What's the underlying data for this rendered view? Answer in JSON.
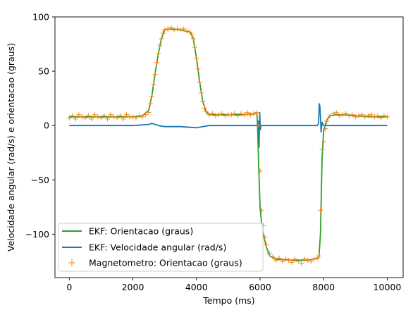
{
  "chart_data": {
    "type": "line",
    "xlabel": "Tempo (ms)",
    "ylabel": "Velocidade angular (rad/s) e orientacao (graus)",
    "xlim": [
      -450,
      10500
    ],
    "ylim": [
      -140,
      100
    ],
    "xticks": [
      0,
      2000,
      4000,
      6000,
      8000,
      10000
    ],
    "yticks": [
      100,
      50,
      0,
      -50,
      -100
    ],
    "xtick_labels": [
      "0",
      "2000",
      "4000",
      "6000",
      "8000",
      "10000"
    ],
    "ytick_labels": [
      "100",
      "50",
      "0",
      "−50",
      "−100"
    ],
    "grid": false,
    "legend_position": "lower-left",
    "series": [
      {
        "name": "EKF: Orientacao (graus)",
        "kind": "line",
        "color": "#2ca02c",
        "x": [
          0,
          500,
          1000,
          1500,
          2000,
          2300,
          2500,
          2600,
          2700,
          2800,
          2900,
          3000,
          3200,
          3500,
          3800,
          3900,
          4000,
          4100,
          4200,
          4300,
          4400,
          4600,
          5000,
          5500,
          5900,
          5920,
          5960,
          6000,
          6050,
          6100,
          6200,
          6300,
          6500,
          7000,
          7500,
          7850,
          7900,
          7950,
          8000,
          8100,
          8200,
          8400,
          8600,
          9000,
          9500,
          10000
        ],
        "y": [
          8,
          8,
          8,
          8,
          8,
          9,
          14,
          28,
          48,
          66,
          80,
          88,
          89,
          88,
          86,
          80,
          62,
          40,
          22,
          13,
          10,
          10,
          10,
          10,
          11,
          0,
          -40,
          -75,
          -90,
          -100,
          -112,
          -120,
          -123,
          -124,
          -124,
          -122,
          -100,
          -30,
          -5,
          5,
          9,
          10,
          10,
          9,
          8,
          8
        ]
      },
      {
        "name": "EKF: Velocidade angular (rad/s)",
        "kind": "line",
        "color": "#1f77b4",
        "x": [
          0,
          2000,
          2500,
          2600,
          2700,
          2800,
          3000,
          3500,
          4000,
          4200,
          4400,
          5000,
          5800,
          5900,
          5950,
          5970,
          5990,
          6010,
          6030,
          6080,
          6200,
          6500,
          7000,
          7500,
          7800,
          7840,
          7860,
          7880,
          7900,
          7920,
          7950,
          8000,
          8200,
          9000,
          10000
        ],
        "y": [
          0,
          0,
          1,
          2,
          1,
          0,
          -1,
          -1,
          -2,
          -1,
          0,
          0,
          0,
          0,
          4,
          -20,
          12,
          -4,
          0,
          0,
          0,
          0,
          0,
          0,
          0,
          2,
          20,
          18,
          8,
          -6,
          3,
          0,
          0,
          0,
          0
        ]
      },
      {
        "name": "Magnetometro: Orientacao (graus)",
        "kind": "scatter",
        "marker": "+",
        "color": "#ff7f0e",
        "x": [
          0,
          100,
          200,
          300,
          400,
          500,
          600,
          700,
          800,
          900,
          1000,
          1100,
          1200,
          1300,
          1400,
          1500,
          1600,
          1700,
          1800,
          1900,
          2000,
          2100,
          2200,
          2300,
          2400,
          2500,
          2550,
          2600,
          2650,
          2700,
          2750,
          2800,
          2850,
          2900,
          2950,
          3000,
          3100,
          3200,
          3300,
          3400,
          3500,
          3600,
          3700,
          3800,
          3850,
          3900,
          3950,
          4000,
          4050,
          4100,
          4150,
          4200,
          4250,
          4300,
          4400,
          4500,
          4600,
          4700,
          4800,
          4900,
          5000,
          5100,
          5200,
          5300,
          5400,
          5500,
          5600,
          5700,
          5800,
          5900,
          5950,
          6000,
          6050,
          6100,
          6150,
          6200,
          6300,
          6400,
          6500,
          6600,
          6700,
          6800,
          6900,
          7000,
          7100,
          7200,
          7300,
          7400,
          7500,
          7600,
          7700,
          7800,
          7850,
          7900,
          7950,
          8000,
          8050,
          8100,
          8200,
          8300,
          8400,
          8500,
          8600,
          8700,
          8800,
          8900,
          9000,
          9100,
          9200,
          9300,
          9400,
          9500,
          9600,
          9700,
          9800,
          9900,
          10000
        ],
        "y": [
          7,
          9,
          6,
          10,
          8,
          7,
          9,
          6,
          10,
          8,
          7,
          9,
          6,
          10,
          8,
          7,
          9,
          6,
          10,
          8,
          8,
          7,
          9,
          8,
          10,
          12,
          20,
          27,
          38,
          47,
          58,
          66,
          74,
          80,
          85,
          88,
          89,
          90,
          88,
          89,
          88,
          89,
          87,
          86,
          84,
          80,
          72,
          62,
          52,
          40,
          30,
          22,
          16,
          13,
          10,
          11,
          9,
          10,
          11,
          9,
          10,
          10,
          11,
          9,
          11,
          10,
          12,
          10,
          11,
          12,
          0,
          -42,
          -78,
          -92,
          -103,
          -110,
          -118,
          -121,
          -124,
          -122,
          -125,
          -123,
          -124,
          -126,
          -123,
          -125,
          -127,
          -123,
          -124,
          -125,
          -123,
          -122,
          -120,
          -78,
          -22,
          -15,
          -3,
          4,
          9,
          11,
          12,
          9,
          10,
          11,
          9,
          10,
          8,
          9,
          10,
          8,
          9,
          10,
          8,
          9,
          7,
          9,
          8
        ]
      }
    ]
  }
}
